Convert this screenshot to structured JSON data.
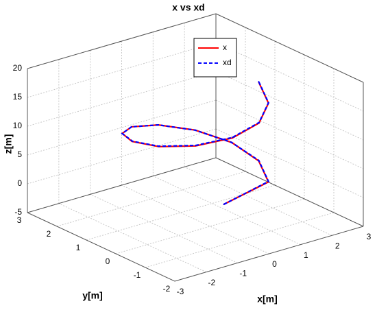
{
  "chart_data": {
    "type": "line3d",
    "title": "x vs xd",
    "xlabel": "x[m]",
    "ylabel": "y[m]",
    "zlabel": "z[m]",
    "xlim": [
      -3,
      3
    ],
    "ylim": [
      -2,
      3
    ],
    "zlim": [
      -5,
      20
    ],
    "xticks": [
      -3,
      -2,
      -1,
      0,
      1,
      2,
      3
    ],
    "yticks": [
      -2,
      -1,
      0,
      1,
      2,
      3
    ],
    "zticks": [
      -5,
      0,
      5,
      10,
      15,
      20
    ],
    "grid": true,
    "legend": "top",
    "series": [
      {
        "name": "x",
        "color": "#ff0000",
        "dash": false,
        "x": [
          -0.5,
          1.24,
          1.66,
          1.63,
          1.16,
          0.38,
          -0.5,
          -1.24,
          -1.66,
          -1.63,
          -1.16,
          -0.38,
          0.5,
          1.24,
          1.66
        ],
        "y": [
          -1,
          -0.66,
          0.12,
          1.0,
          1.74,
          2.16,
          2.13,
          1.66,
          0.88,
          0.0,
          -0.74,
          -1.16,
          -1.13,
          -0.66,
          0.12
        ],
        "z": [
          2,
          2.3,
          3.44,
          4.58,
          5.72,
          6.86,
          8.0,
          9.14,
          10.28,
          11.42,
          12.56,
          13.7,
          14.84,
          15.98,
          17.12
        ]
      },
      {
        "name": "xd",
        "color": "#0000ff",
        "dash": true,
        "x": [
          -0.5,
          1.25,
          1.67,
          1.62,
          1.15,
          0.37,
          -0.51,
          -1.25,
          -1.65,
          -1.62,
          -1.15,
          -0.37,
          0.51,
          1.25,
          1.67
        ],
        "y": [
          -1,
          -0.65,
          0.13,
          1.01,
          1.73,
          2.15,
          2.12,
          1.65,
          0.87,
          0.01,
          -0.73,
          -1.15,
          -1.12,
          -0.65,
          0.13
        ],
        "z": [
          2,
          2.35,
          3.48,
          4.62,
          5.75,
          6.9,
          8.04,
          9.18,
          10.3,
          11.45,
          12.6,
          13.74,
          14.88,
          16.02,
          17.15
        ]
      }
    ]
  }
}
